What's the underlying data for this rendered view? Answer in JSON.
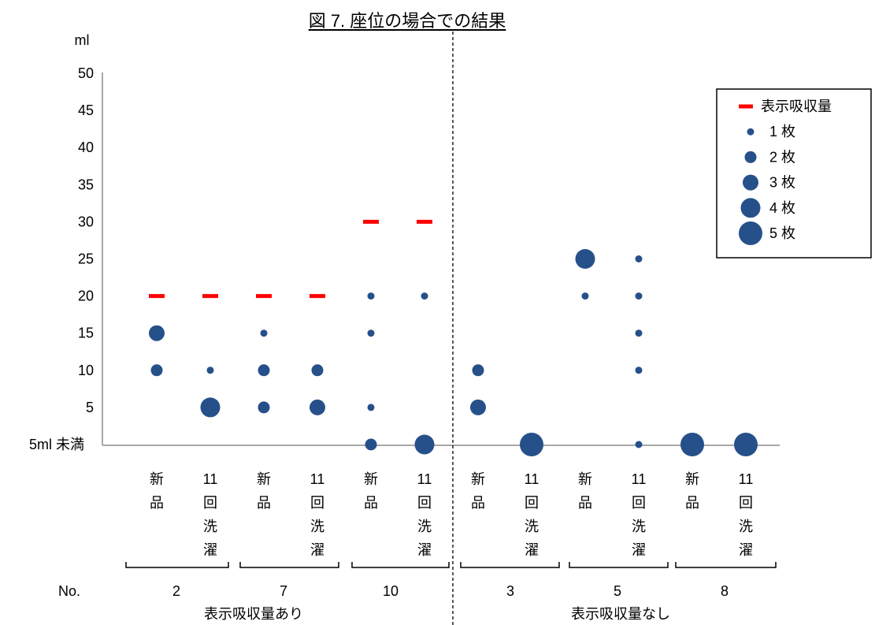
{
  "chart_data": {
    "type": "scatter",
    "title": "図 7. 座位の場合での結果",
    "ylabel": "ml",
    "y_ticks": [
      "5ml 未満",
      "5",
      "10",
      "15",
      "20",
      "25",
      "30",
      "35",
      "40",
      "45",
      "50"
    ],
    "ylim": [
      0,
      50
    ],
    "grid": false,
    "x_group_label": "No.",
    "colors": {
      "bubble": "#26508a",
      "rated": "#ff0000",
      "axis": "#8c8c8c"
    },
    "legend": {
      "position": "top-right",
      "items": [
        {
          "label": "表示吸収量",
          "marker": "dash"
        },
        {
          "label": "1 枚",
          "count": 1
        },
        {
          "label": "2 枚",
          "count": 2
        },
        {
          "label": "3 枚",
          "count": 3
        },
        {
          "label": "4 枚",
          "count": 4
        },
        {
          "label": "5 枚",
          "count": 5
        }
      ]
    },
    "sections": [
      {
        "label": "表示吸収量あり",
        "groups": [
          {
            "no": "2",
            "categories": [
              {
                "label": "新品",
                "rated": 20,
                "points": [
                  {
                    "y": 15,
                    "count": 3
                  },
                  {
                    "y": 10,
                    "count": 2
                  }
                ]
              },
              {
                "label": "11回洗濯",
                "rated": 20,
                "points": [
                  {
                    "y": 10,
                    "count": 1
                  },
                  {
                    "y": 5,
                    "count": 4
                  }
                ]
              }
            ]
          },
          {
            "no": "7",
            "categories": [
              {
                "label": "新品",
                "rated": 20,
                "points": [
                  {
                    "y": 15,
                    "count": 1
                  },
                  {
                    "y": 10,
                    "count": 2
                  },
                  {
                    "y": 5,
                    "count": 2
                  }
                ]
              },
              {
                "label": "11回洗濯",
                "rated": 20,
                "points": [
                  {
                    "y": 10,
                    "count": 2
                  },
                  {
                    "y": 5,
                    "count": 3
                  }
                ]
              }
            ]
          },
          {
            "no": "10",
            "categories": [
              {
                "label": "新品",
                "rated": 30,
                "points": [
                  {
                    "y": 20,
                    "count": 1
                  },
                  {
                    "y": 15,
                    "count": 1
                  },
                  {
                    "y": 5,
                    "count": 1
                  },
                  {
                    "y": 0,
                    "count": 2
                  }
                ]
              },
              {
                "label": "11回洗濯",
                "rated": 30,
                "points": [
                  {
                    "y": 20,
                    "count": 1
                  },
                  {
                    "y": 0,
                    "count": 4
                  }
                ]
              }
            ]
          }
        ]
      },
      {
        "label": "表示吸収量なし",
        "groups": [
          {
            "no": "3",
            "categories": [
              {
                "label": "新品",
                "rated": null,
                "points": [
                  {
                    "y": 10,
                    "count": 2
                  },
                  {
                    "y": 5,
                    "count": 3
                  }
                ]
              },
              {
                "label": "11回洗濯",
                "rated": null,
                "points": [
                  {
                    "y": 0,
                    "count": 5
                  }
                ]
              }
            ]
          },
          {
            "no": "5",
            "categories": [
              {
                "label": "新品",
                "rated": null,
                "points": [
                  {
                    "y": 25,
                    "count": 4
                  },
                  {
                    "y": 20,
                    "count": 1
                  }
                ]
              },
              {
                "label": "11回洗濯",
                "rated": null,
                "points": [
                  {
                    "y": 25,
                    "count": 1
                  },
                  {
                    "y": 20,
                    "count": 1
                  },
                  {
                    "y": 15,
                    "count": 1
                  },
                  {
                    "y": 10,
                    "count": 1
                  },
                  {
                    "y": 0,
                    "count": 1
                  }
                ]
              }
            ]
          },
          {
            "no": "8",
            "categories": [
              {
                "label": "新品",
                "rated": null,
                "points": [
                  {
                    "y": 0,
                    "count": 5
                  }
                ]
              },
              {
                "label": "11回洗濯",
                "rated": null,
                "points": [
                  {
                    "y": 0,
                    "count": 5
                  }
                ]
              }
            ]
          }
        ]
      }
    ]
  }
}
